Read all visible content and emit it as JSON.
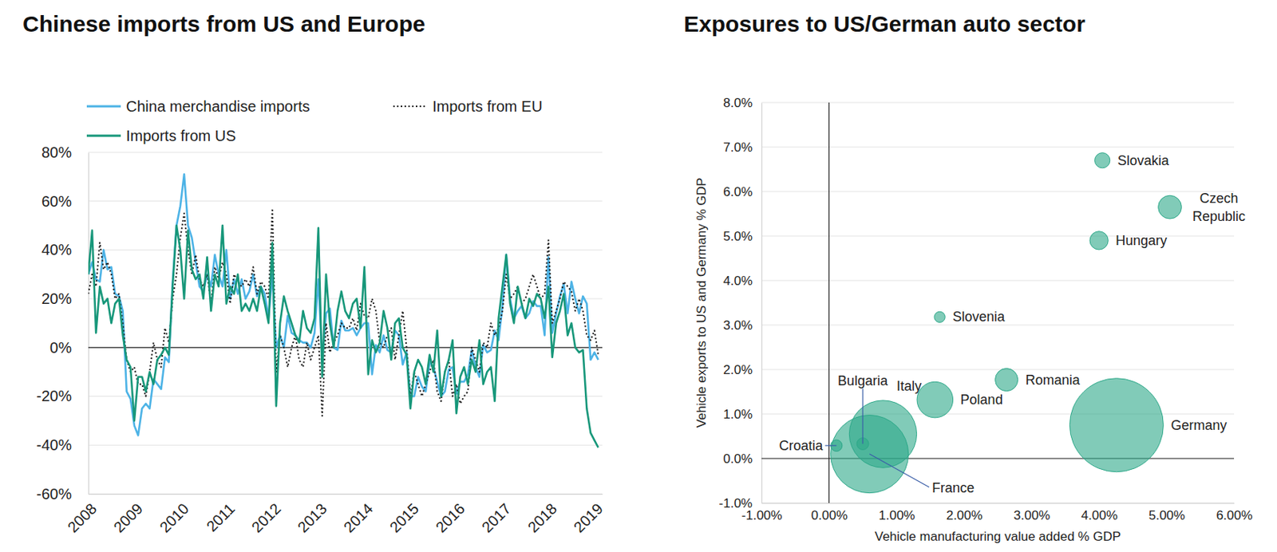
{
  "chart_data": [
    {
      "type": "line",
      "title": "Chinese imports from US and Europe",
      "x": [
        2008,
        2008.083,
        2008.167,
        2008.25,
        2008.333,
        2008.417,
        2008.5,
        2008.583,
        2008.667,
        2008.75,
        2008.833,
        2008.917,
        2009,
        2009.083,
        2009.167,
        2009.25,
        2009.333,
        2009.417,
        2009.5,
        2009.583,
        2009.667,
        2009.75,
        2009.833,
        2009.917,
        2010,
        2010.083,
        2010.167,
        2010.25,
        2010.333,
        2010.417,
        2010.5,
        2010.583,
        2010.667,
        2010.75,
        2010.833,
        2010.917,
        2011,
        2011.083,
        2011.167,
        2011.25,
        2011.333,
        2011.417,
        2011.5,
        2011.583,
        2011.667,
        2011.75,
        2011.833,
        2011.917,
        2012,
        2012.083,
        2012.167,
        2012.25,
        2012.333,
        2012.417,
        2012.5,
        2012.583,
        2012.667,
        2012.75,
        2012.833,
        2012.917,
        2013,
        2013.083,
        2013.167,
        2013.25,
        2013.333,
        2013.417,
        2013.5,
        2013.583,
        2013.667,
        2013.75,
        2013.833,
        2013.917,
        2014,
        2014.083,
        2014.167,
        2014.25,
        2014.333,
        2014.417,
        2014.5,
        2014.583,
        2014.667,
        2014.75,
        2014.833,
        2014.917,
        2015,
        2015.083,
        2015.167,
        2015.25,
        2015.333,
        2015.417,
        2015.5,
        2015.583,
        2015.667,
        2015.75,
        2015.833,
        2015.917,
        2016,
        2016.083,
        2016.167,
        2016.25,
        2016.333,
        2016.417,
        2016.5,
        2016.583,
        2016.667,
        2016.75,
        2016.833,
        2016.917,
        2017,
        2017.083,
        2017.167,
        2017.25,
        2017.333,
        2017.417,
        2017.5,
        2017.583,
        2017.667,
        2017.75,
        2017.833,
        2017.917,
        2018,
        2018.083,
        2018.167,
        2018.25,
        2018.333,
        2018.417,
        2018.5,
        2018.583,
        2018.667,
        2018.75,
        2018.833,
        2018.917,
        2019,
        2019.083
      ],
      "xlim": [
        2008,
        2019.17
      ],
      "xticks": [
        2008,
        2009,
        2010,
        2011,
        2012,
        2013,
        2014,
        2015,
        2016,
        2017,
        2018,
        2019
      ],
      "ylim": [
        -60,
        80
      ],
      "yticks": [
        {
          "value": -60,
          "label": "-60%"
        },
        {
          "value": -40,
          "label": "-40%"
        },
        {
          "value": -20,
          "label": "-20%"
        },
        {
          "value": 0,
          "label": "0%"
        },
        {
          "value": 20,
          "label": "20%"
        },
        {
          "value": 40,
          "label": "40%"
        },
        {
          "value": 60,
          "label": "60%"
        },
        {
          "value": 80,
          "label": "80%"
        }
      ],
      "grid": true,
      "legend": "top",
      "series": [
        {
          "name": "China merchandise imports",
          "color": "#4DB3E6",
          "line_style": "solid",
          "values": [
            30,
            35,
            28,
            27,
            40,
            32,
            33,
            22,
            21,
            15,
            -18,
            -21,
            -32,
            -36,
            -25,
            -23,
            -25,
            -13,
            -15,
            -17,
            -4,
            -6,
            27,
            50,
            58,
            71,
            50,
            45,
            35,
            25,
            23,
            30,
            25,
            38,
            30,
            25,
            40,
            20,
            28,
            22,
            28,
            20,
            23,
            30,
            21,
            25,
            22,
            12,
            30,
            0,
            5,
            0,
            13,
            6,
            5,
            3,
            2,
            2,
            0,
            6,
            28,
            -5,
            14,
            16,
            0,
            -1,
            11,
            7,
            7,
            8,
            5,
            8,
            10,
            10,
            -11,
            1,
            -2,
            5,
            -1,
            -2,
            7,
            5,
            -7,
            -2,
            -20,
            -20,
            -12,
            -16,
            -18,
            -6,
            -8,
            -14,
            -20,
            -18,
            -9,
            -8,
            -19,
            -14,
            -14,
            -11,
            -1,
            -8,
            -12,
            1,
            -2,
            -1,
            7,
            3,
            17,
            38,
            20,
            12,
            15,
            17,
            12,
            14,
            19,
            17,
            17,
            5,
            37,
            6,
            14,
            21,
            26,
            14,
            27,
            20,
            14,
            21,
            18,
            -5,
            -2,
            -5
          ]
        },
        {
          "name": "Imports from EU",
          "color": "#1a1a1a",
          "line_style": "dotted",
          "values": [
            22,
            30,
            25,
            43,
            32,
            35,
            30,
            20,
            22,
            10,
            -5,
            -10,
            -8,
            -15,
            -15,
            -20,
            -10,
            2,
            -5,
            -8,
            8,
            2,
            20,
            30,
            45,
            55,
            40,
            30,
            38,
            28,
            25,
            30,
            18,
            33,
            28,
            35,
            30,
            18,
            30,
            27,
            25,
            28,
            25,
            33,
            22,
            27,
            25,
            20,
            57,
            -10,
            5,
            0,
            -8,
            0,
            5,
            -5,
            -8,
            2,
            -5,
            0,
            5,
            -28,
            10,
            -2,
            2,
            5,
            10,
            8,
            8,
            12,
            7,
            18,
            13,
            12,
            20,
            15,
            2,
            0,
            5,
            8,
            -5,
            5,
            15,
            0,
            -20,
            -10,
            -15,
            -20,
            -15,
            -10,
            -5,
            -18,
            -22,
            -10,
            -5,
            -20,
            -15,
            -23,
            -20,
            -18,
            0,
            -5,
            -10,
            2,
            0,
            10,
            5,
            8,
            15,
            30,
            20,
            22,
            25,
            18,
            20,
            25,
            30,
            25,
            20,
            22,
            44,
            10,
            15,
            20,
            27,
            25,
            23,
            15,
            20,
            15,
            5,
            3,
            7,
            -3
          ]
        },
        {
          "name": "Imports from US",
          "color": "#17977A",
          "line_style": "solid",
          "values": [
            30,
            48,
            6,
            25,
            18,
            20,
            10,
            18,
            20,
            5,
            -5,
            -8,
            -30,
            -12,
            -12,
            -18,
            -10,
            -15,
            -5,
            -3,
            0,
            -3,
            25,
            50,
            40,
            20,
            48,
            32,
            28,
            30,
            20,
            37,
            15,
            30,
            25,
            50,
            18,
            25,
            22,
            30,
            15,
            18,
            15,
            20,
            15,
            25,
            18,
            10,
            43,
            -24,
            10,
            21,
            15,
            10,
            5,
            2,
            15,
            8,
            6,
            12,
            49,
            -12,
            30,
            10,
            0,
            15,
            23,
            15,
            12,
            18,
            20,
            8,
            33,
            -11,
            3,
            -2,
            2,
            15,
            8,
            -5,
            10,
            12,
            0,
            -3,
            -25,
            -10,
            -5,
            -8,
            -15,
            -3,
            -10,
            7,
            -20,
            -10,
            -5,
            3,
            -27,
            -12,
            -8,
            -15,
            -5,
            -10,
            3,
            -15,
            -10,
            -8,
            -22,
            12,
            25,
            38,
            18,
            10,
            25,
            18,
            12,
            20,
            17,
            22,
            20,
            12,
            25,
            -4,
            10,
            15,
            22,
            5,
            10,
            0,
            -2,
            -1,
            -25,
            -35,
            -38,
            -41
          ]
        }
      ]
    },
    {
      "type": "bubble",
      "title": "Exposures to US/German auto sector",
      "x_label": "Vehicle manufacturing value added % GDP",
      "y_label": "Vehicle exports to US and Germany % GDP",
      "labels": [
        "Germany",
        "France",
        "Italy",
        "Poland",
        "Romania",
        "Czech Republic",
        "Hungary",
        "Slovakia",
        "Slovenia",
        "Croatia",
        "Bulgaria"
      ],
      "x": [
        4.26,
        0.6,
        0.8,
        1.57,
        2.63,
        5.05,
        4.0,
        4.05,
        1.64,
        0.11,
        0.5
      ],
      "y": [
        0.75,
        0.1,
        0.55,
        1.32,
        1.77,
        5.65,
        4.9,
        6.7,
        3.18,
        0.29,
        0.33
      ],
      "sizes": [
        3400,
        2350,
        1760,
        500,
        200,
        210,
        130,
        90,
        45,
        51,
        55
      ],
      "color": "#2DA889",
      "xlim": [
        -1,
        6
      ],
      "xticks": [
        {
          "value": -1,
          "label": "-1.00%"
        },
        {
          "value": 0,
          "label": "0.00%"
        },
        {
          "value": 1,
          "label": "1.00%"
        },
        {
          "value": 2,
          "label": "2.00%"
        },
        {
          "value": 3,
          "label": "3.00%"
        },
        {
          "value": 4,
          "label": "4.00%"
        },
        {
          "value": 5,
          "label": "5.00%"
        },
        {
          "value": 6,
          "label": "6.00%"
        }
      ],
      "ylim": [
        -1,
        8
      ],
      "yticks": [
        {
          "value": -1,
          "label": "-1.0%"
        },
        {
          "value": 0,
          "label": "0.0%"
        },
        {
          "value": 1,
          "label": "1.0%"
        },
        {
          "value": 2,
          "label": "2.0%"
        },
        {
          "value": 3,
          "label": "3.0%"
        },
        {
          "value": 4,
          "label": "4.0%"
        },
        {
          "value": 5,
          "label": "5.0%"
        },
        {
          "value": 6,
          "label": "6.0%"
        },
        {
          "value": 7,
          "label": "7.0%"
        },
        {
          "value": 8,
          "label": "8.0%"
        }
      ],
      "grid": true
    }
  ]
}
